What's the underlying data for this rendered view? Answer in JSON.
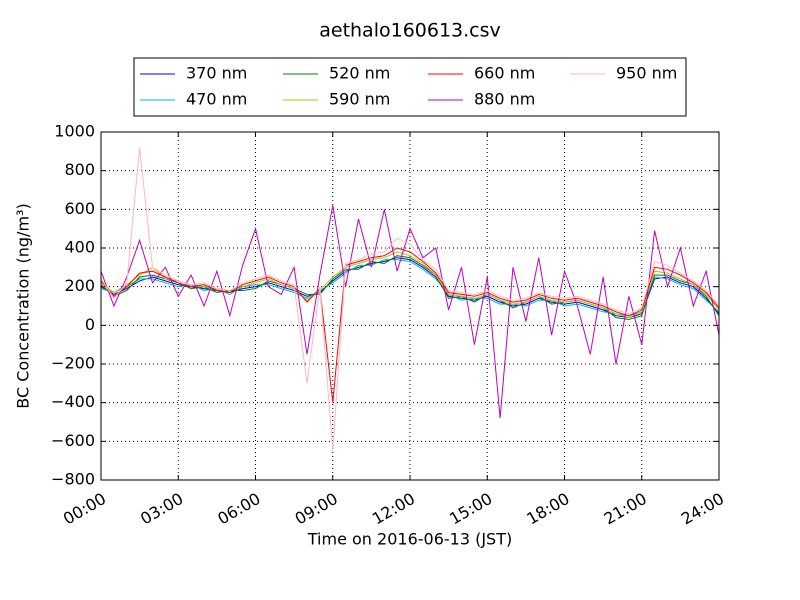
{
  "chart_data": {
    "type": "line",
    "title": "aethalo160613.csv",
    "xlabel": "Time on 2016-06-13 (JST)",
    "ylabel": "BC Concentration (ng/m³)",
    "x": [
      0,
      0.5,
      1,
      1.5,
      2,
      2.5,
      3,
      3.5,
      4,
      4.5,
      5,
      5.5,
      6,
      6.5,
      7,
      7.5,
      8,
      8.5,
      9,
      9.5,
      10,
      10.5,
      11,
      11.5,
      12,
      12.5,
      13,
      13.5,
      14,
      14.5,
      15,
      15.5,
      16,
      16.5,
      17,
      17.5,
      18,
      18.5,
      19,
      19.5,
      20,
      20.5,
      21,
      21.5,
      22,
      22.5,
      23,
      23.5,
      24
    ],
    "series": [
      {
        "name": "370 nm",
        "color": "#0000ff",
        "values": [
          200,
          160,
          190,
          230,
          250,
          230,
          210,
          200,
          190,
          180,
          170,
          190,
          200,
          220,
          200,
          180,
          150,
          170,
          230,
          280,
          300,
          320,
          330,
          350,
          340,
          300,
          250,
          150,
          140,
          130,
          150,
          120,
          100,
          110,
          140,
          120,
          110,
          120,
          100,
          80,
          50,
          40,
          60,
          240,
          250,
          220,
          200,
          140,
          60
        ]
      },
      {
        "name": "470 nm",
        "color": "#00bfbf",
        "values": [
          190,
          170,
          200,
          240,
          240,
          220,
          200,
          210,
          180,
          190,
          160,
          200,
          210,
          210,
          190,
          170,
          140,
          180,
          220,
          270,
          310,
          310,
          340,
          340,
          330,
          290,
          240,
          160,
          130,
          140,
          140,
          110,
          110,
          100,
          130,
          130,
          100,
          110,
          90,
          70,
          60,
          50,
          70,
          250,
          240,
          210,
          190,
          130,
          70
        ]
      },
      {
        "name": "520 nm",
        "color": "#008000",
        "values": [
          210,
          150,
          180,
          250,
          260,
          240,
          220,
          190,
          200,
          170,
          180,
          180,
          190,
          230,
          210,
          190,
          160,
          160,
          240,
          290,
          290,
          330,
          320,
          360,
          350,
          310,
          260,
          140,
          150,
          120,
          160,
          130,
          90,
          120,
          150,
          110,
          120,
          130,
          110,
          90,
          40,
          30,
          50,
          260,
          260,
          230,
          210,
          150,
          50
        ]
      },
      {
        "name": "590 nm",
        "color": "#bfbf00",
        "values": [
          220,
          170,
          210,
          260,
          300,
          240,
          230,
          210,
          200,
          190,
          180,
          200,
          220,
          240,
          210,
          190,
          130,
          180,
          250,
          300,
          320,
          340,
          350,
          380,
          360,
          320,
          260,
          160,
          150,
          140,
          160,
          130,
          110,
          120,
          150,
          130,
          120,
          130,
          110,
          90,
          60,
          40,
          70,
          280,
          270,
          240,
          210,
          160,
          80
        ]
      },
      {
        "name": "660 nm",
        "color": "#ff0000",
        "values": [
          230,
          150,
          200,
          270,
          280,
          250,
          220,
          200,
          210,
          180,
          170,
          210,
          230,
          250,
          220,
          200,
          120,
          190,
          -400,
          310,
          330,
          350,
          360,
          400,
          380,
          330,
          270,
          170,
          160,
          150,
          170,
          140,
          120,
          130,
          160,
          140,
          130,
          140,
          120,
          100,
          70,
          50,
          80,
          300,
          290,
          260,
          220,
          170,
          90
        ]
      },
      {
        "name": "880 nm",
        "color": "#bf00bf",
        "values": [
          280,
          100,
          250,
          440,
          220,
          300,
          150,
          260,
          100,
          280,
          50,
          310,
          500,
          200,
          160,
          300,
          -150,
          260,
          620,
          200,
          550,
          300,
          600,
          280,
          500,
          350,
          400,
          80,
          300,
          -100,
          250,
          -480,
          300,
          20,
          350,
          -50,
          280,
          100,
          -150,
          250,
          -200,
          150,
          -100,
          490,
          200,
          400,
          100,
          280,
          -50
        ]
      },
      {
        "name": "950 nm",
        "color": "#ffb6c1",
        "values": [
          240,
          140,
          220,
          920,
          300,
          260,
          230,
          210,
          220,
          190,
          180,
          220,
          240,
          260,
          230,
          210,
          -300,
          200,
          -650,
          320,
          340,
          370,
          380,
          450,
          420,
          340,
          290,
          180,
          170,
          160,
          180,
          150,
          130,
          140,
          170,
          150,
          140,
          150,
          130,
          110,
          80,
          60,
          90,
          330,
          310,
          270,
          230,
          180,
          100
        ]
      }
    ],
    "xlim": [
      0,
      24
    ],
    "xticks": [
      {
        "value": 0,
        "label": "00:00"
      },
      {
        "value": 3,
        "label": "03:00"
      },
      {
        "value": 6,
        "label": "06:00"
      },
      {
        "value": 9,
        "label": "09:00"
      },
      {
        "value": 12,
        "label": "12:00"
      },
      {
        "value": 15,
        "label": "15:00"
      },
      {
        "value": 18,
        "label": "18:00"
      },
      {
        "value": 21,
        "label": "21:00"
      },
      {
        "value": 24,
        "label": "24:00"
      }
    ],
    "ylim": [
      -800,
      1000
    ],
    "yticks": [
      {
        "value": -800,
        "label": "−800"
      },
      {
        "value": -600,
        "label": "−600"
      },
      {
        "value": -400,
        "label": "−400"
      },
      {
        "value": -200,
        "label": "−200"
      },
      0,
      200,
      400,
      600,
      800,
      1000
    ],
    "grid": true,
    "legend": "top"
  }
}
